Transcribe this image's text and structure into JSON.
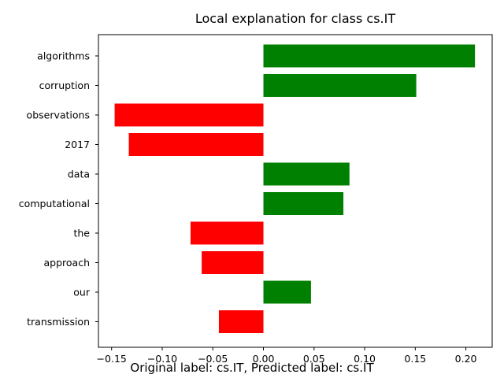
{
  "chart_data": {
    "type": "bar",
    "orientation": "horizontal",
    "title": "Local explanation for class cs.IT",
    "xlabel": "",
    "ylabel": "",
    "categories": [
      "algorithms",
      "corruption",
      "observations",
      "2017",
      "data",
      "computational",
      "the",
      "approach",
      "our",
      "transmission"
    ],
    "values": [
      0.209,
      0.151,
      -0.147,
      -0.133,
      0.085,
      0.079,
      -0.072,
      -0.061,
      0.047,
      -0.044
    ],
    "xlim": [
      -0.163,
      0.226
    ],
    "xticks": [
      -0.15,
      -0.1,
      -0.05,
      0.0,
      0.05,
      0.1,
      0.15,
      0.2
    ],
    "xtick_labels": [
      "−0.15",
      "−0.10",
      "−0.05",
      "0.00",
      "0.05",
      "0.10",
      "0.15",
      "0.20"
    ],
    "grid": false,
    "colors": {
      "positive": "#008000",
      "negative": "#ff0000"
    }
  },
  "caption": "Original label: cs.IT, Predicted label: cs.IT"
}
